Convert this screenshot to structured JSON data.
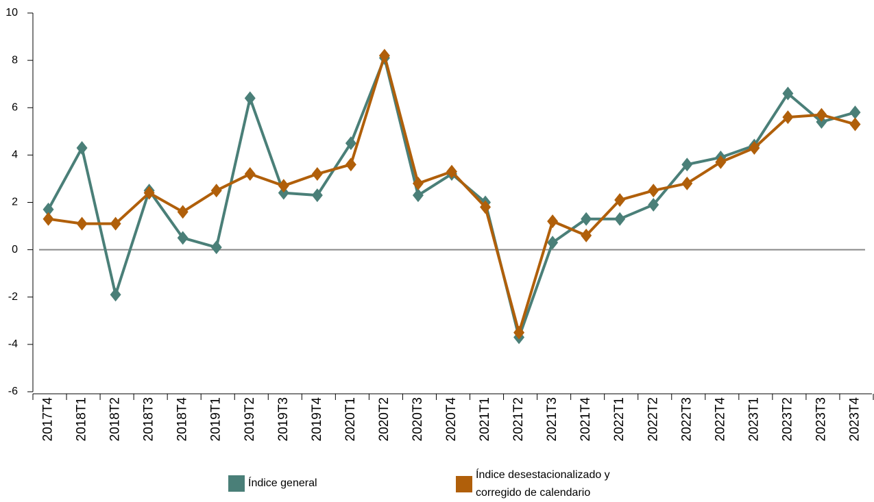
{
  "chart_data": {
    "type": "line",
    "categories": [
      "2017T4",
      "2018T1",
      "2018T2",
      "2018T3",
      "2018T4",
      "2019T1",
      "2019T2",
      "2019T3",
      "2019T4",
      "2020T1",
      "2020T2",
      "2020T3",
      "2020T4",
      "2021T1",
      "2021T2",
      "2021T3",
      "2021T4",
      "2022T1",
      "2022T2",
      "2022T3",
      "2022T4",
      "2023T1",
      "2023T2",
      "2023T3",
      "2023T4"
    ],
    "series": [
      {
        "name": "Índice general",
        "color": "#4a7f78",
        "values": [
          1.7,
          4.3,
          -1.9,
          2.5,
          0.5,
          0.1,
          6.4,
          2.4,
          2.3,
          4.5,
          8.1,
          2.3,
          3.2,
          2.0,
          -3.7,
          0.3,
          1.3,
          1.3,
          1.9,
          3.6,
          3.9,
          4.4,
          6.6,
          5.4,
          5.8
        ]
      },
      {
        "name": "Índice desestacionalizado y corregido de calendario",
        "color": "#b05f0a",
        "values": [
          1.3,
          1.1,
          1.1,
          2.4,
          1.6,
          2.5,
          3.2,
          2.7,
          3.2,
          3.6,
          8.2,
          2.8,
          3.3,
          1.8,
          -3.5,
          1.2,
          0.6,
          2.1,
          2.5,
          2.8,
          3.7,
          4.3,
          5.6,
          5.7,
          5.3
        ]
      }
    ],
    "ylim": [
      -6,
      10
    ],
    "yticks": [
      -6,
      -4,
      -2,
      0,
      2,
      4,
      6,
      8,
      10
    ]
  }
}
